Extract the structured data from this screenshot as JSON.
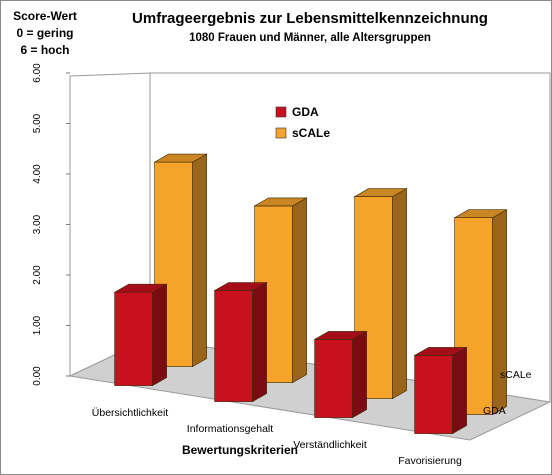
{
  "score_label": {
    "line1": "Score-Wert",
    "line2": "0 = gering",
    "line3": "6 = hoch"
  },
  "chart_data": {
    "type": "bar",
    "title": "Umfrageergebnis zur Lebensmittelkennzeichnung",
    "subtitle": "1080 Frauen und Männer, alle Altersgruppen",
    "xlabel": "Bewertungskriterien",
    "ylabel": "",
    "ylim": [
      0,
      6
    ],
    "yticks": [
      "0.00",
      "1.00",
      "2.00",
      "3.00",
      "4.00",
      "5.00",
      "6.00"
    ],
    "categories": [
      "Übersichtlichkeit",
      "Informationsgehalt",
      "Verständlichkeit",
      "Favorisierung"
    ],
    "series": [
      {
        "name": "GDA",
        "values": [
          1.85,
          2.2,
          1.55,
          1.55
        ],
        "color": "#c8101e"
      },
      {
        "name": "sCALe",
        "values": [
          4.05,
          3.5,
          4.0,
          3.9
        ],
        "color": "#f5a32a"
      }
    ],
    "depth_labels": [
      "sCALe",
      "GDA"
    ],
    "legend_position": "center-top",
    "grid": false
  }
}
